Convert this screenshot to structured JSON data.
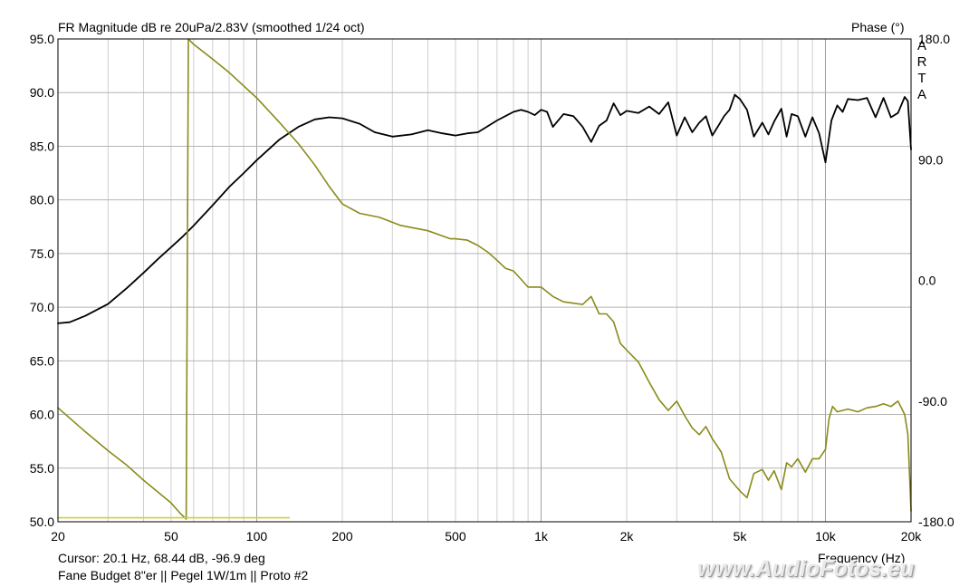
{
  "header": {
    "title": "FR Magnitude dB re 20uPa/2.83V (smoothed 1/24 oct)",
    "phase_label": "Phase (°)",
    "brand": [
      "A",
      "R",
      "T",
      "A"
    ]
  },
  "footer": {
    "cursor": "Cursor: 20.1 Hz, 68.44 dB, -96.9 deg",
    "xlabel": "Frequency (Hz)",
    "caption": "Fane Budget 8\"er  ||  Pegel 1W/1m  || Proto #2",
    "watermark": "www.AudioFotos.eu"
  },
  "chart_data": {
    "type": "line",
    "title": "FR Magnitude dB re 20uPa/2.83V (smoothed 1/24 oct)",
    "xlabel": "Frequency (Hz)",
    "ylabel": "",
    "y2label": "Phase (°)",
    "x_scale": "log",
    "xlim": [
      20,
      20000
    ],
    "ylim": [
      50,
      95
    ],
    "y2lim": [
      -180,
      180
    ],
    "grid": true,
    "x_ticks": [
      {
        "value": 20,
        "label": "20"
      },
      {
        "value": 50,
        "label": "50"
      },
      {
        "value": 100,
        "label": "100"
      },
      {
        "value": 200,
        "label": "200"
      },
      {
        "value": 500,
        "label": "500"
      },
      {
        "value": 1000,
        "label": "1k"
      },
      {
        "value": 2000,
        "label": "2k"
      },
      {
        "value": 5000,
        "label": "5k"
      },
      {
        "value": 10000,
        "label": "10k"
      },
      {
        "value": 20000,
        "label": "20k"
      }
    ],
    "y_ticks": [
      "50.0",
      "55.0",
      "60.0",
      "65.0",
      "70.0",
      "75.0",
      "80.0",
      "85.0",
      "90.0",
      "95.0"
    ],
    "y2_ticks": [
      "-180.0",
      "-90.0",
      "0.0",
      "90.0",
      "180.0"
    ],
    "series": [
      {
        "role": "magnitude",
        "color": "#000000",
        "x": [
          20,
          22,
          25,
          30,
          35,
          40,
          45,
          50,
          55,
          60,
          70,
          80,
          90,
          100,
          120,
          140,
          160,
          180,
          200,
          230,
          260,
          300,
          350,
          400,
          450,
          500,
          550,
          600,
          700,
          800,
          850,
          900,
          950,
          1000,
          1050,
          1100,
          1200,
          1300,
          1400,
          1500,
          1600,
          1700,
          1800,
          1900,
          2000,
          2200,
          2400,
          2600,
          2800,
          3000,
          3200,
          3400,
          3600,
          3800,
          4000,
          4200,
          4400,
          4600,
          4800,
          5000,
          5300,
          5600,
          6000,
          6300,
          6600,
          7000,
          7300,
          7600,
          8000,
          8500,
          9000,
          9500,
          10000,
          10500,
          11000,
          11500,
          12000,
          13000,
          14000,
          15000,
          16000,
          17000,
          18000,
          19000,
          19500,
          20000
        ],
        "y": [
          68.5,
          68.6,
          69.2,
          70.3,
          71.8,
          73.2,
          74.5,
          75.6,
          76.6,
          77.6,
          79.5,
          81.2,
          82.5,
          83.7,
          85.6,
          86.8,
          87.5,
          87.7,
          87.6,
          87.1,
          86.3,
          85.9,
          86.1,
          86.5,
          86.2,
          86.0,
          86.2,
          86.3,
          87.4,
          88.2,
          88.4,
          88.2,
          87.9,
          88.4,
          88.2,
          86.8,
          88.0,
          87.8,
          86.8,
          85.4,
          86.9,
          87.4,
          89.0,
          87.9,
          88.3,
          88.1,
          88.7,
          88.0,
          89.1,
          86.0,
          87.7,
          86.3,
          87.2,
          87.8,
          86.0,
          86.9,
          87.8,
          88.4,
          89.8,
          89.4,
          88.4,
          85.9,
          87.2,
          86.1,
          87.3,
          88.5,
          85.9,
          88.0,
          87.8,
          85.9,
          87.7,
          86.2,
          83.5,
          87.4,
          88.8,
          88.2,
          89.4,
          89.3,
          89.5,
          87.7,
          89.5,
          87.7,
          88.1,
          89.6,
          89.2,
          84.7
        ]
      },
      {
        "role": "phase",
        "color": "#8a8a1a",
        "x": [
          20,
          25,
          30,
          35,
          40,
          45,
          50,
          54,
          56.5,
          57.5,
          60,
          70,
          80,
          90,
          100,
          120,
          140,
          160,
          180,
          200,
          230,
          270,
          320,
          400,
          480,
          500,
          550,
          600,
          650,
          700,
          750,
          800,
          900,
          1000,
          1100,
          1200,
          1300,
          1400,
          1500,
          1600,
          1700,
          1800,
          1900,
          2000,
          2200,
          2400,
          2600,
          2800,
          3000,
          3200,
          3400,
          3600,
          3800,
          4000,
          4300,
          4600,
          5000,
          5300,
          5600,
          6000,
          6300,
          6600,
          7000,
          7300,
          7600,
          8000,
          8500,
          9000,
          9500,
          10000,
          10300,
          10600,
          11000,
          12000,
          13000,
          14000,
          15000,
          16000,
          17000,
          18000,
          19000,
          19500,
          20000
        ],
        "y": [
          -95,
          -113,
          -127,
          -138,
          -149,
          -158,
          -166,
          -174,
          -178,
          180,
          176,
          165,
          155,
          145,
          136,
          118,
          102,
          86,
          70,
          57,
          50,
          47,
          41,
          37,
          31,
          31,
          30,
          26,
          21,
          15,
          9,
          7,
          -5,
          -5,
          -12,
          -16,
          -17,
          -18,
          -12,
          -25,
          -25,
          -31,
          -47,
          -52,
          -61,
          -76,
          -89,
          -97,
          -90,
          -101,
          -110,
          -115,
          -109,
          -118,
          -128,
          -148,
          -157,
          -162,
          -144,
          -141,
          -149,
          -142,
          -156,
          -136,
          -139,
          -133,
          -143,
          -133,
          -133,
          -126,
          -103,
          -94,
          -98,
          -96,
          -98,
          -95,
          -94,
          -92,
          -94,
          -90,
          -100,
          -115,
          -172
        ]
      },
      {
        "role": "phase-residual",
        "color": "#cfcf40",
        "x": [
          20,
          130
        ],
        "y": [
          -177,
          -177
        ]
      }
    ]
  }
}
